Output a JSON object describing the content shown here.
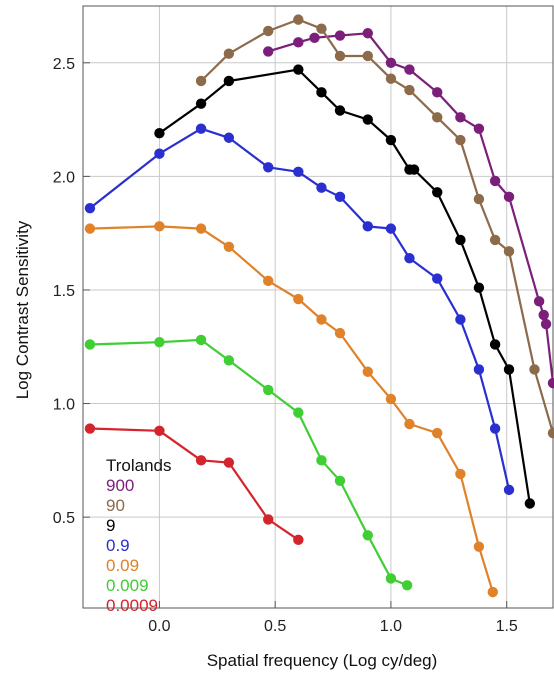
{
  "chart_data": {
    "type": "line",
    "xlabel": "Spatial frequency (Log cy/deg)",
    "ylabel": "Log Contrast Sensitivity",
    "xlim": [
      -0.33,
      1.7
    ],
    "ylim": [
      0.1,
      2.75
    ],
    "x_ticks": [
      0.0,
      0.5,
      1.0,
      1.5
    ],
    "x_tick_labels": [
      "0.0",
      "0.5",
      "1.0",
      "1.5"
    ],
    "y_ticks": [
      0.5,
      1.0,
      1.5,
      2.0,
      2.5
    ],
    "y_tick_labels": [
      "0.5",
      "1.0",
      "1.5",
      "2.0",
      "2.5"
    ],
    "grid": true,
    "legend": {
      "title": "Trolands",
      "placement": "bottom-left"
    },
    "series": [
      {
        "name": "900",
        "color": "#7b1f7a",
        "x": [
          0.47,
          0.6,
          0.67,
          0.78,
          0.9,
          1.0,
          1.08,
          1.2,
          1.3,
          1.38,
          1.45,
          1.51,
          1.64,
          1.66,
          1.67,
          1.7
        ],
        "y": [
          2.55,
          2.59,
          2.61,
          2.62,
          2.63,
          2.5,
          2.47,
          2.37,
          2.26,
          2.21,
          1.98,
          1.91,
          1.45,
          1.39,
          1.35,
          1.09
        ]
      },
      {
        "name": "90",
        "color": "#8c6a4a",
        "x": [
          0.18,
          0.3,
          0.47,
          0.6,
          0.7,
          0.78,
          0.9,
          1.0,
          1.08,
          1.2,
          1.3,
          1.38,
          1.45,
          1.51,
          1.62,
          1.7
        ],
        "y": [
          2.42,
          2.54,
          2.64,
          2.69,
          2.65,
          2.53,
          2.53,
          2.43,
          2.38,
          2.26,
          2.16,
          1.9,
          1.72,
          1.67,
          1.15,
          0.87
        ]
      },
      {
        "name": "9",
        "color": "#000000",
        "x": [
          0.0,
          0.18,
          0.3,
          0.6,
          0.7,
          0.78,
          0.9,
          1.0,
          1.08,
          1.1,
          1.2,
          1.3,
          1.38,
          1.45,
          1.51,
          1.6
        ],
        "y": [
          2.19,
          2.32,
          2.42,
          2.47,
          2.37,
          2.29,
          2.25,
          2.16,
          2.03,
          2.03,
          1.93,
          1.72,
          1.51,
          1.26,
          1.15,
          0.56
        ]
      },
      {
        "name": "0.9",
        "color": "#2a2fd0",
        "x": [
          -0.3,
          0.0,
          0.18,
          0.3,
          0.47,
          0.6,
          0.7,
          0.78,
          0.9,
          1.0,
          1.08,
          1.2,
          1.3,
          1.38,
          1.45,
          1.51
        ],
        "y": [
          1.86,
          2.1,
          2.21,
          2.17,
          2.04,
          2.02,
          1.95,
          1.91,
          1.78,
          1.77,
          1.64,
          1.55,
          1.37,
          1.15,
          0.89,
          0.62
        ]
      },
      {
        "name": "0.09",
        "color": "#e0822a",
        "x": [
          -0.3,
          0.0,
          0.18,
          0.3,
          0.47,
          0.6,
          0.7,
          0.78,
          0.9,
          1.0,
          1.08,
          1.2,
          1.3,
          1.38,
          1.44
        ],
        "y": [
          1.77,
          1.78,
          1.77,
          1.69,
          1.54,
          1.46,
          1.37,
          1.31,
          1.14,
          1.02,
          0.91,
          0.87,
          0.69,
          0.37,
          0.17
        ]
      },
      {
        "name": "0.009",
        "color": "#3fce34",
        "x": [
          -0.3,
          0.0,
          0.18,
          0.3,
          0.47,
          0.6,
          0.7,
          0.78,
          0.9,
          1.0,
          1.07
        ],
        "y": [
          1.26,
          1.27,
          1.28,
          1.19,
          1.06,
          0.96,
          0.75,
          0.66,
          0.42,
          0.23,
          0.2
        ]
      },
      {
        "name": "0.0009",
        "color": "#d4252c",
        "x": [
          -0.3,
          0.0,
          0.18,
          0.3,
          0.47,
          0.6
        ],
        "y": [
          0.89,
          0.88,
          0.75,
          0.74,
          0.49,
          0.4
        ]
      }
    ]
  }
}
